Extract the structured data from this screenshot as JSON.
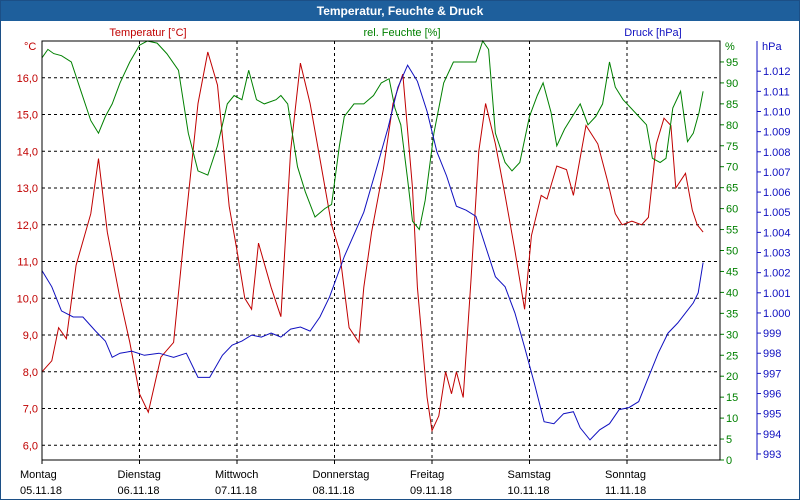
{
  "window": {
    "title": "Temperatur, Feuchte & Druck"
  },
  "colors": {
    "temperature": "#c00000",
    "humidity": "#008000",
    "pressure": "#1010c0",
    "title_bar": "#1e5f9c",
    "grid": "#000000"
  },
  "chart_data": {
    "type": "line",
    "title": "Temperatur, Feuchte & Druck",
    "x_days": [
      {
        "day": "Montag",
        "date": "05.11.18"
      },
      {
        "day": "Dienstag",
        "date": "06.11.18"
      },
      {
        "day": "Mittwoch",
        "date": "07.11.18"
      },
      {
        "day": "Donnerstag",
        "date": "08.11.18"
      },
      {
        "day": "Freitag",
        "date": "09.11.18"
      },
      {
        "day": "Samstag",
        "date": "10.11.18"
      },
      {
        "day": "Sonntag",
        "date": "11.11.18"
      }
    ],
    "x_range_days": [
      0,
      7
    ],
    "axes": {
      "temperature": {
        "label": "Temperatur [°C]",
        "unit": "°C",
        "range": [
          5.6,
          17.0
        ],
        "ticks": [
          "6,0",
          "7,0",
          "8,0",
          "9,0",
          "10,0",
          "11,0",
          "12,0",
          "13,0",
          "14,0",
          "15,0",
          "16,0"
        ],
        "tick_values": [
          6,
          7,
          8,
          9,
          10,
          11,
          12,
          13,
          14,
          15,
          16
        ]
      },
      "humidity": {
        "label": "rel. Feuchte [%]",
        "unit": "%",
        "range": [
          0,
          100
        ],
        "ticks": [
          "0",
          "5",
          "10",
          "15",
          "20",
          "25",
          "30",
          "35",
          "40",
          "45",
          "50",
          "55",
          "60",
          "65",
          "70",
          "75",
          "80",
          "85",
          "90",
          "95"
        ],
        "tick_values": [
          0,
          5,
          10,
          15,
          20,
          25,
          30,
          35,
          40,
          45,
          50,
          55,
          60,
          65,
          70,
          75,
          80,
          85,
          90,
          95
        ]
      },
      "pressure": {
        "label": "Druck [hPa]",
        "unit": "hPa",
        "range": [
          992.7,
          1013.5
        ],
        "ticks": [
          "993",
          "994",
          "995",
          "996",
          "997",
          "998",
          "999",
          "1.000",
          "1.001",
          "1.002",
          "1.003",
          "1.004",
          "1.005",
          "1.006",
          "1.007",
          "1.008",
          "1.009",
          "1.010",
          "1.011",
          "1.012"
        ],
        "tick_values": [
          993,
          994,
          995,
          996,
          997,
          998,
          999,
          1000,
          1001,
          1002,
          1003,
          1004,
          1005,
          1006,
          1007,
          1008,
          1009,
          1010,
          1011,
          1012
        ]
      }
    },
    "series": [
      {
        "name": "Temperatur",
        "axis": "temperature",
        "points": [
          [
            0.0,
            8.0
          ],
          [
            0.1,
            8.3
          ],
          [
            0.17,
            9.2
          ],
          [
            0.25,
            8.9
          ],
          [
            0.35,
            10.9
          ],
          [
            0.5,
            12.3
          ],
          [
            0.58,
            13.8
          ],
          [
            0.67,
            11.8
          ],
          [
            0.8,
            10.0
          ],
          [
            0.9,
            8.8
          ],
          [
            1.0,
            7.4
          ],
          [
            1.09,
            6.9
          ],
          [
            1.22,
            8.4
          ],
          [
            1.35,
            8.8
          ],
          [
            1.45,
            11.5
          ],
          [
            1.6,
            15.3
          ],
          [
            1.7,
            16.7
          ],
          [
            1.8,
            15.8
          ],
          [
            1.92,
            12.5
          ],
          [
            2.0,
            11.3
          ],
          [
            2.08,
            10.0
          ],
          [
            2.15,
            9.7
          ],
          [
            2.22,
            11.5
          ],
          [
            2.35,
            10.3
          ],
          [
            2.45,
            9.5
          ],
          [
            2.55,
            14.0
          ],
          [
            2.65,
            16.4
          ],
          [
            2.75,
            15.3
          ],
          [
            2.85,
            13.8
          ],
          [
            2.97,
            12.0
          ],
          [
            3.05,
            11.3
          ],
          [
            3.15,
            9.2
          ],
          [
            3.25,
            8.8
          ],
          [
            3.3,
            10.3
          ],
          [
            3.38,
            11.8
          ],
          [
            3.5,
            13.5
          ],
          [
            3.6,
            15.3
          ],
          [
            3.7,
            16.1
          ],
          [
            3.8,
            13.0
          ],
          [
            3.85,
            10.3
          ],
          [
            3.95,
            7.3
          ],
          [
            4.0,
            6.4
          ],
          [
            4.07,
            6.8
          ],
          [
            4.14,
            8.0
          ],
          [
            4.2,
            7.4
          ],
          [
            4.25,
            8.0
          ],
          [
            4.32,
            7.3
          ],
          [
            4.4,
            10.5
          ],
          [
            4.48,
            14.0
          ],
          [
            4.55,
            15.3
          ],
          [
            4.65,
            14.2
          ],
          [
            4.75,
            12.8
          ],
          [
            4.85,
            11.3
          ],
          [
            4.95,
            9.7
          ],
          [
            5.02,
            11.7
          ],
          [
            5.12,
            12.8
          ],
          [
            5.18,
            12.7
          ],
          [
            5.28,
            13.6
          ],
          [
            5.38,
            13.5
          ],
          [
            5.45,
            12.8
          ],
          [
            5.58,
            14.7
          ],
          [
            5.7,
            14.2
          ],
          [
            5.8,
            13.2
          ],
          [
            5.88,
            12.3
          ],
          [
            5.95,
            12.0
          ],
          [
            6.05,
            12.1
          ],
          [
            6.15,
            12.0
          ],
          [
            6.22,
            12.2
          ],
          [
            6.3,
            14.2
          ],
          [
            6.38,
            14.9
          ],
          [
            6.45,
            14.7
          ],
          [
            6.5,
            13.0
          ],
          [
            6.6,
            13.4
          ],
          [
            6.67,
            12.4
          ],
          [
            6.72,
            12.0
          ],
          [
            6.78,
            11.8
          ]
        ]
      },
      {
        "name": "rel. Feuchte",
        "axis": "humidity",
        "points": [
          [
            0.0,
            96
          ],
          [
            0.06,
            98
          ],
          [
            0.12,
            97
          ],
          [
            0.2,
            96.5
          ],
          [
            0.3,
            95
          ],
          [
            0.4,
            88
          ],
          [
            0.5,
            81
          ],
          [
            0.58,
            78
          ],
          [
            0.65,
            82
          ],
          [
            0.72,
            85
          ],
          [
            0.8,
            90
          ],
          [
            0.9,
            95
          ],
          [
            1.0,
            99
          ],
          [
            1.08,
            100
          ],
          [
            1.18,
            99.5
          ],
          [
            1.28,
            97
          ],
          [
            1.4,
            93
          ],
          [
            1.5,
            78
          ],
          [
            1.6,
            69
          ],
          [
            1.7,
            68
          ],
          [
            1.8,
            75
          ],
          [
            1.9,
            85
          ],
          [
            1.97,
            87
          ],
          [
            2.05,
            86
          ],
          [
            2.12,
            93
          ],
          [
            2.2,
            86
          ],
          [
            2.28,
            85
          ],
          [
            2.4,
            86
          ],
          [
            2.45,
            87
          ],
          [
            2.52,
            85
          ],
          [
            2.62,
            70
          ],
          [
            2.7,
            64
          ],
          [
            2.8,
            58
          ],
          [
            2.9,
            60
          ],
          [
            2.97,
            61
          ],
          [
            3.05,
            75
          ],
          [
            3.1,
            82
          ],
          [
            3.2,
            85
          ],
          [
            3.3,
            85
          ],
          [
            3.4,
            87
          ],
          [
            3.48,
            90
          ],
          [
            3.56,
            91
          ],
          [
            3.62,
            84
          ],
          [
            3.68,
            80
          ],
          [
            3.75,
            67
          ],
          [
            3.8,
            57
          ],
          [
            3.87,
            55
          ],
          [
            3.93,
            62
          ],
          [
            4.02,
            78
          ],
          [
            4.12,
            90
          ],
          [
            4.22,
            95
          ],
          [
            4.35,
            95
          ],
          [
            4.45,
            95
          ],
          [
            4.52,
            100
          ],
          [
            4.58,
            98
          ],
          [
            4.65,
            78
          ],
          [
            4.75,
            71
          ],
          [
            4.82,
            69
          ],
          [
            4.9,
            71
          ],
          [
            5.0,
            82
          ],
          [
            5.08,
            87
          ],
          [
            5.14,
            90
          ],
          [
            5.22,
            83
          ],
          [
            5.28,
            75
          ],
          [
            5.36,
            79
          ],
          [
            5.44,
            82
          ],
          [
            5.52,
            85
          ],
          [
            5.6,
            80
          ],
          [
            5.68,
            82
          ],
          [
            5.75,
            85
          ],
          [
            5.82,
            95
          ],
          [
            5.88,
            89
          ],
          [
            5.96,
            86
          ],
          [
            6.04,
            84
          ],
          [
            6.12,
            82
          ],
          [
            6.2,
            80
          ],
          [
            6.26,
            72
          ],
          [
            6.34,
            71
          ],
          [
            6.4,
            72
          ],
          [
            6.47,
            84
          ],
          [
            6.55,
            88
          ],
          [
            6.62,
            76
          ],
          [
            6.68,
            78
          ],
          [
            6.74,
            83
          ],
          [
            6.78,
            88
          ]
        ]
      },
      {
        "name": "Druck",
        "axis": "pressure",
        "points": [
          [
            0.0,
            1002.1
          ],
          [
            0.1,
            1001.3
          ],
          [
            0.2,
            1000.1
          ],
          [
            0.32,
            999.8
          ],
          [
            0.42,
            999.8
          ],
          [
            0.55,
            999.1
          ],
          [
            0.65,
            998.6
          ],
          [
            0.72,
            997.8
          ],
          [
            0.8,
            998.0
          ],
          [
            0.92,
            998.1
          ],
          [
            1.05,
            997.9
          ],
          [
            1.2,
            998.0
          ],
          [
            1.35,
            997.8
          ],
          [
            1.48,
            998.0
          ],
          [
            1.6,
            996.8
          ],
          [
            1.72,
            996.8
          ],
          [
            1.85,
            997.9
          ],
          [
            1.95,
            998.4
          ],
          [
            2.05,
            998.6
          ],
          [
            2.15,
            998.9
          ],
          [
            2.25,
            998.8
          ],
          [
            2.35,
            999.0
          ],
          [
            2.45,
            998.8
          ],
          [
            2.55,
            999.2
          ],
          [
            2.65,
            999.3
          ],
          [
            2.75,
            999.1
          ],
          [
            2.85,
            999.8
          ],
          [
            2.95,
            1000.8
          ],
          [
            3.1,
            1002.8
          ],
          [
            3.3,
            1005.0
          ],
          [
            3.45,
            1007.5
          ],
          [
            3.55,
            1009.2
          ],
          [
            3.65,
            1011.2
          ],
          [
            3.75,
            1012.3
          ],
          [
            3.85,
            1011.5
          ],
          [
            3.95,
            1010.0
          ],
          [
            4.05,
            1008.0
          ],
          [
            4.15,
            1006.8
          ],
          [
            4.25,
            1005.3
          ],
          [
            4.35,
            1005.1
          ],
          [
            4.45,
            1004.8
          ],
          [
            4.55,
            1003.3
          ],
          [
            4.65,
            1001.8
          ],
          [
            4.75,
            1001.3
          ],
          [
            4.85,
            1000.0
          ],
          [
            4.95,
            998.3
          ],
          [
            5.05,
            996.5
          ],
          [
            5.15,
            994.6
          ],
          [
            5.25,
            994.5
          ],
          [
            5.35,
            995.0
          ],
          [
            5.45,
            995.1
          ],
          [
            5.52,
            994.3
          ],
          [
            5.62,
            993.7
          ],
          [
            5.72,
            994.2
          ],
          [
            5.82,
            994.5
          ],
          [
            5.92,
            995.2
          ],
          [
            6.02,
            995.3
          ],
          [
            6.12,
            995.6
          ],
          [
            6.22,
            996.8
          ],
          [
            6.32,
            998.0
          ],
          [
            6.42,
            999.0
          ],
          [
            6.52,
            999.5
          ],
          [
            6.6,
            1000.0
          ],
          [
            6.68,
            1000.5
          ],
          [
            6.73,
            1001.0
          ],
          [
            6.78,
            1002.5
          ]
        ]
      }
    ]
  }
}
